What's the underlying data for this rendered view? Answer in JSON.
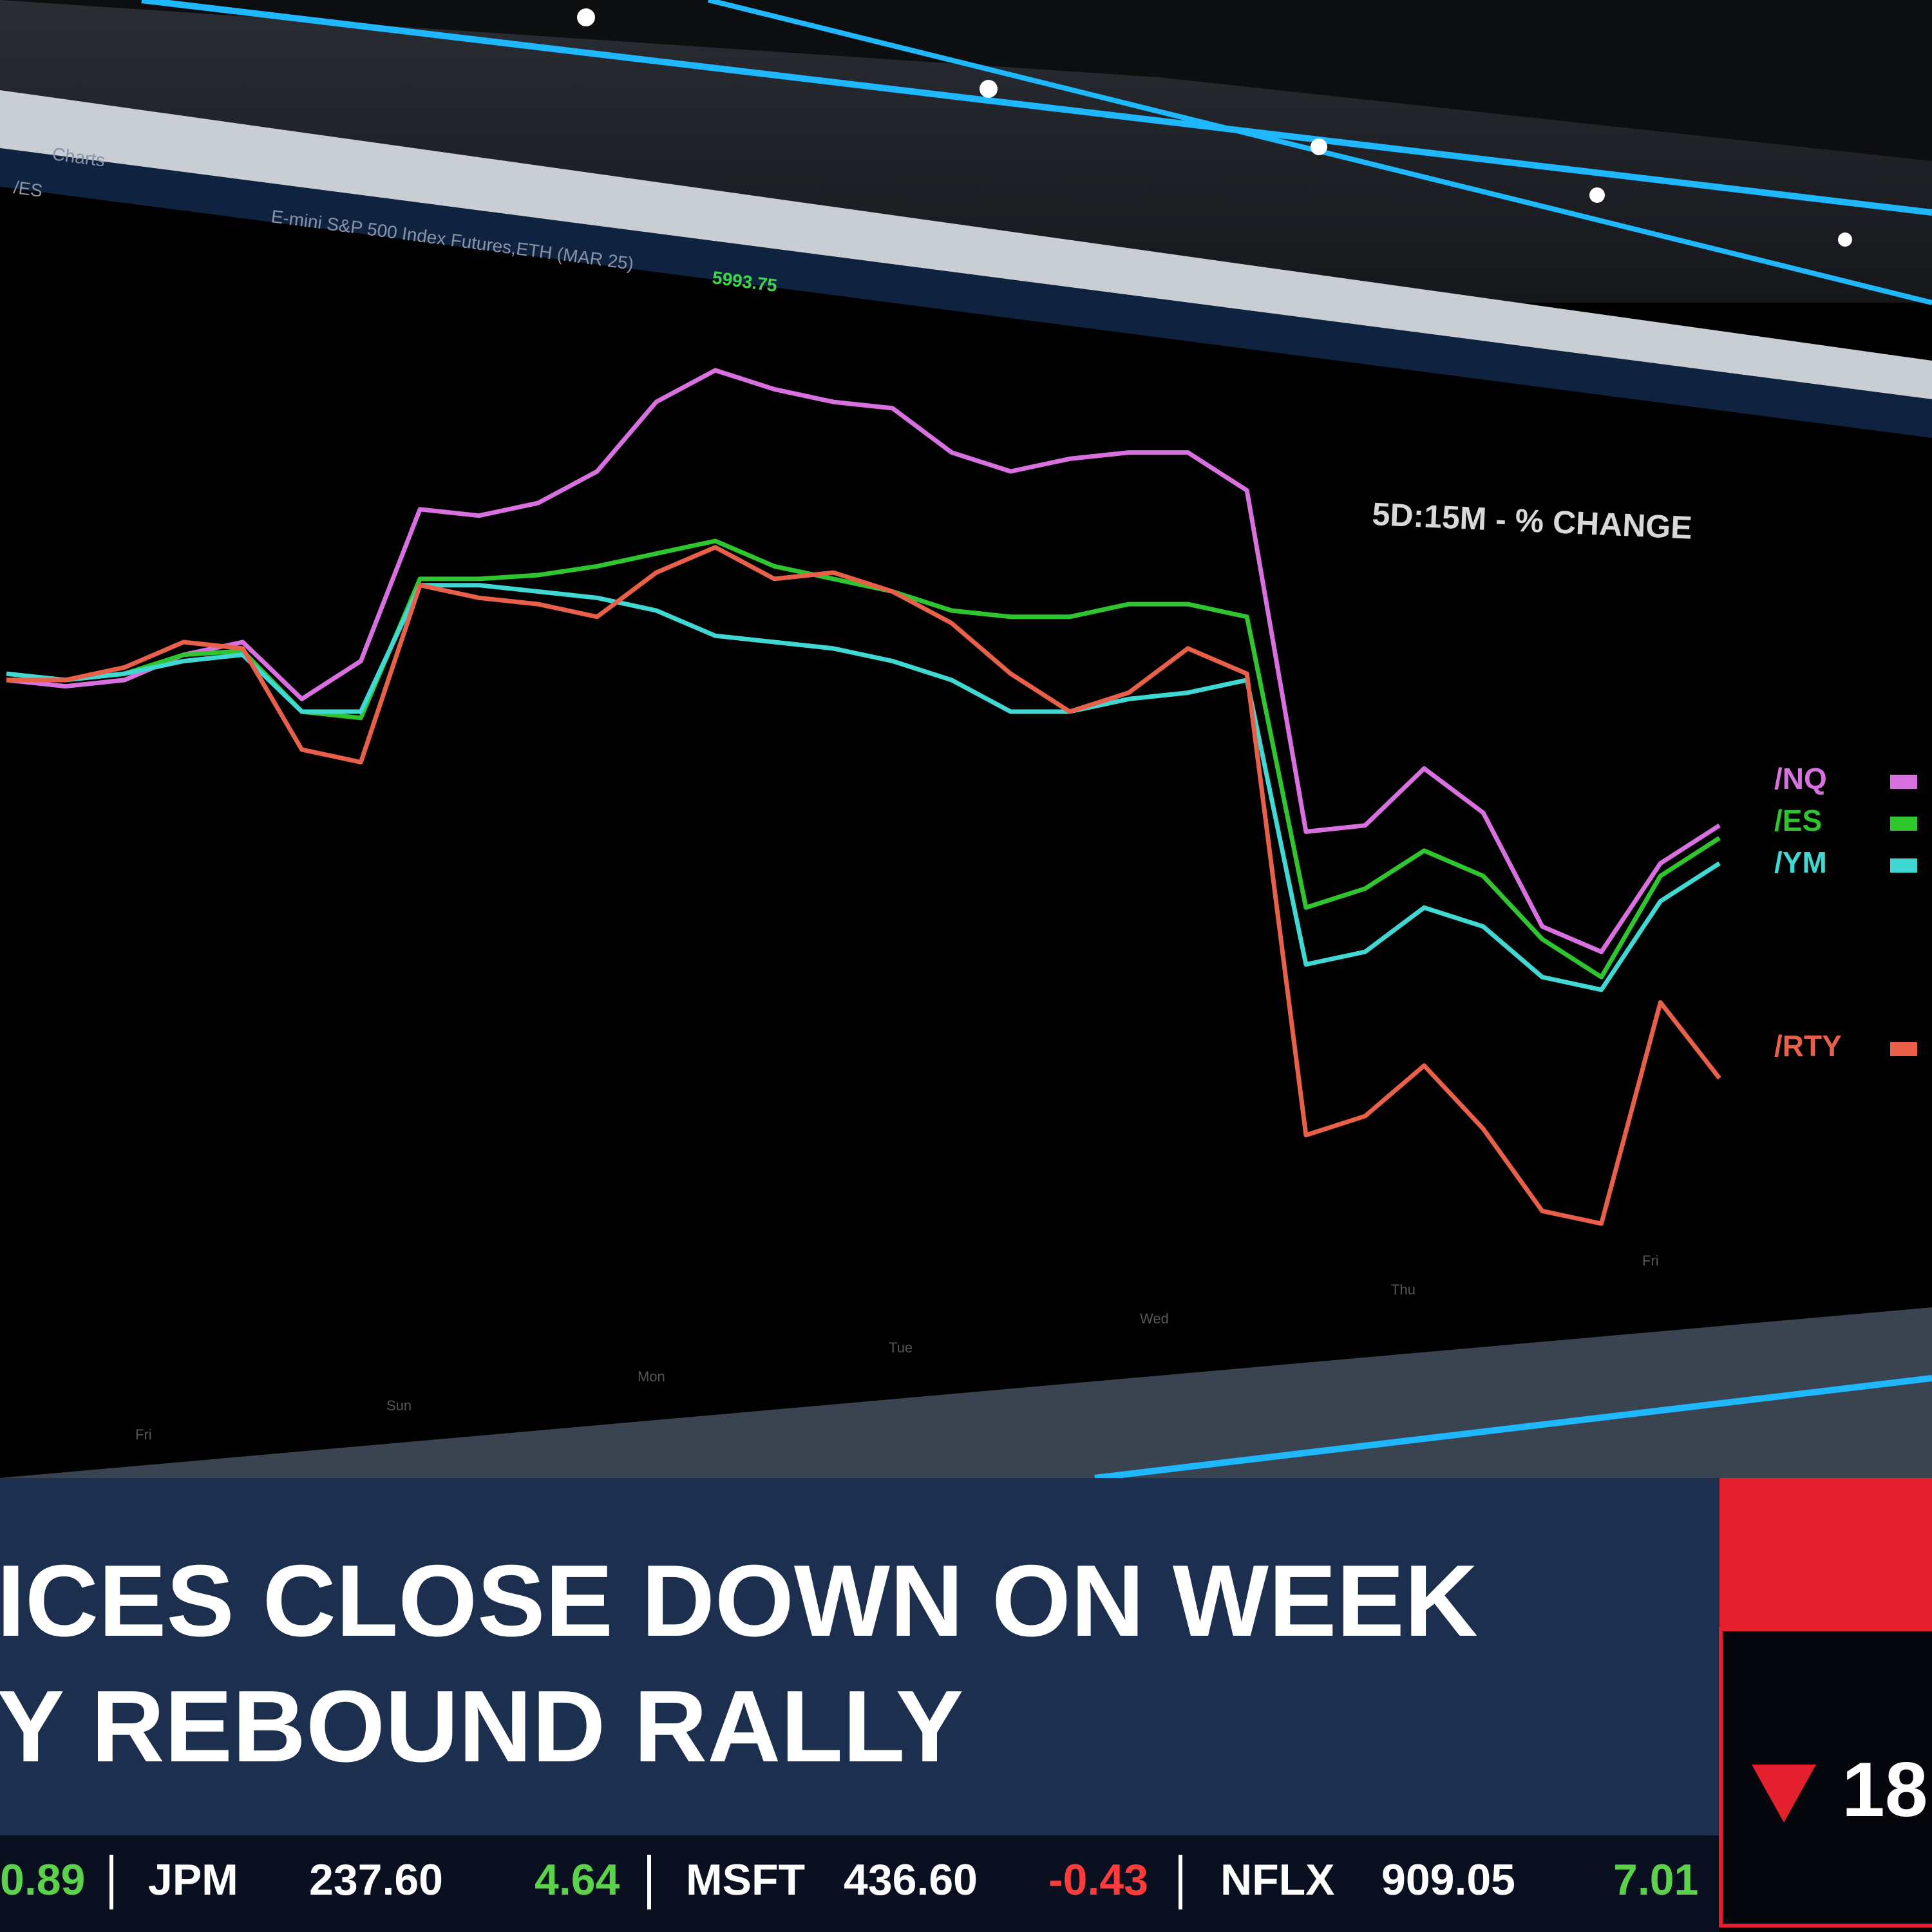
{
  "screen": {
    "tab": "Charts",
    "symbol": "/ES",
    "instrument": "E-mini S&P 500 Index Futures,ETH (MAR 25)",
    "price": "5993.75"
  },
  "chart_data": {
    "type": "line",
    "title": "5D:15M - % CHANGE",
    "days": [
      "Fri",
      "Sun",
      "Mon",
      "Tue",
      "Wed",
      "Thu",
      "Fri"
    ],
    "series": [
      {
        "name": "/NQ",
        "color": "#d870df",
        "values": [
          0,
          -0.05,
          0,
          0.2,
          0.3,
          -0.15,
          0.15,
          1.35,
          1.3,
          1.4,
          1.65,
          2.2,
          2.45,
          2.3,
          2.2,
          2.15,
          1.8,
          1.65,
          1.75,
          1.8,
          1.8,
          1.5,
          -1.2,
          -1.15,
          -0.7,
          -1.05,
          -1.95,
          -2.15,
          -1.45,
          -1.15
        ]
      },
      {
        "name": "/ES",
        "color": "#2fc52f",
        "values": [
          0,
          0,
          0.05,
          0.2,
          0.23,
          -0.25,
          -0.3,
          0.8,
          0.8,
          0.83,
          0.9,
          1,
          1.1,
          0.9,
          0.8,
          0.7,
          0.55,
          0.5,
          0.5,
          0.6,
          0.6,
          0.5,
          -1.8,
          -1.65,
          -1.35,
          -1.55,
          -2.05,
          -2.35,
          -1.55,
          -1.25
        ]
      },
      {
        "name": "/YM",
        "color": "#40d8d2",
        "values": [
          0.05,
          0,
          0.05,
          0.15,
          0.2,
          -0.25,
          -0.25,
          0.75,
          0.75,
          0.7,
          0.65,
          0.55,
          0.35,
          0.3,
          0.25,
          0.15,
          0,
          -0.25,
          -0.25,
          -0.15,
          -0.1,
          0,
          -2.25,
          -2.15,
          -1.8,
          -1.95,
          -2.35,
          -2.45,
          -1.75,
          -1.45
        ]
      },
      {
        "name": "/RTY",
        "color": "#e8604a",
        "values": [
          0,
          0,
          0.1,
          0.3,
          0.25,
          -0.55,
          -0.65,
          0.75,
          0.65,
          0.6,
          0.5,
          0.85,
          1.05,
          0.8,
          0.85,
          0.7,
          0.45,
          0.05,
          -0.25,
          -0.1,
          0.25,
          0.05,
          -3.6,
          -3.45,
          -3.05,
          -3.55,
          -4.2,
          -4.3,
          -2.55,
          -3.15
        ]
      }
    ]
  },
  "headline": {
    "line1": "ICES CLOSE DOWN ON WEEK",
    "line2": "Y REBOUND RALLY"
  },
  "ticker": [
    {
      "change": "0.89"
    },
    {
      "symbol": "JPM",
      "price": "237.60",
      "change": "4.64"
    },
    {
      "symbol": "MSFT",
      "price": "436.60",
      "change": "-0.43"
    },
    {
      "symbol": "NFLX",
      "price": "909.05",
      "change": "7.01"
    }
  ],
  "index_box": {
    "value": "18"
  }
}
